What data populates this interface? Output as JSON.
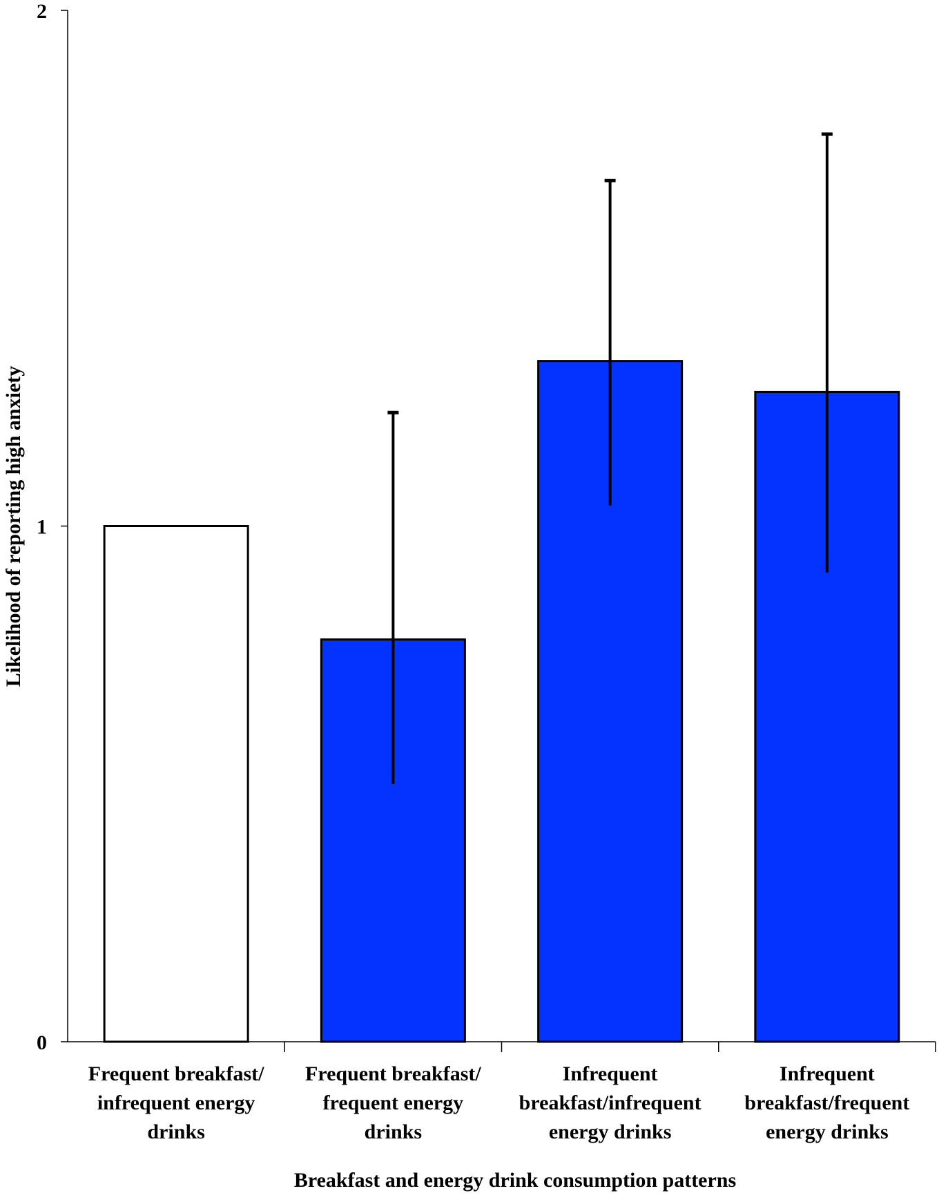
{
  "chart_data": {
    "type": "bar",
    "title": "",
    "xlabel": "Breakfast and energy drink consumption patterns",
    "ylabel": "Likelihood of reporting high anxiety",
    "ylim": [
      0,
      2
    ],
    "yticks": [
      "0",
      "1",
      "2"
    ],
    "categories": [
      [
        "Frequent breakfast/",
        "infrequent energy",
        "drinks"
      ],
      [
        "Frequent breakfast/",
        "frequent energy",
        "drinks"
      ],
      [
        "Infrequent",
        "breakfast/infrequent",
        "energy drinks"
      ],
      [
        "Infrequent",
        "breakfast/frequent",
        "energy drinks"
      ]
    ],
    "values": [
      1.0,
      0.78,
      1.32,
      1.26
    ],
    "error_low": [
      null,
      0.5,
      1.04,
      0.91
    ],
    "error_high": [
      null,
      1.22,
      1.67,
      1.76
    ],
    "colors": [
      "#ffffff",
      "#0433ff",
      "#0433ff",
      "#0433ff"
    ],
    "grid": false,
    "legend": "none"
  }
}
